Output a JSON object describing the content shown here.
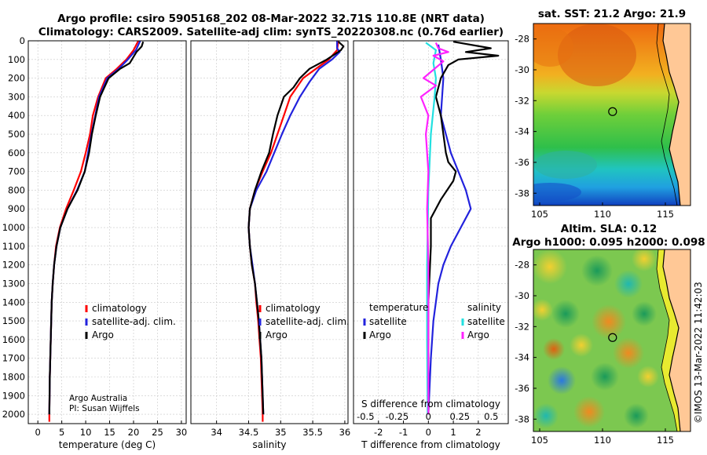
{
  "title_line1": "Argo profile: csiro 5905168_202 08-Mar-2022 32.71S 110.8E (NRT data)",
  "title_line2": "Climatology: CARS2009. Satellite-adj clim: synTS_20220308.nc (0.76d earlier)",
  "credit": "©IMOS 13-Mar-2022 11:42:03",
  "argo_note": [
    "Argo Australia",
    "PI: Susan Wijffels"
  ],
  "colors": {
    "climatology": "#ff0000",
    "satellite": "#2222dd",
    "argo": "#000000",
    "cyan": "#22e0e0",
    "magenta": "#ff22ff",
    "land": "#ffc896"
  },
  "chart_data": [
    {
      "type": "line",
      "id": "temperature",
      "xlabel": "temperature (deg C)",
      "xlim": [
        -2,
        31
      ],
      "ylim": [
        2050,
        0
      ],
      "xticks": [
        0,
        5,
        10,
        15,
        20,
        25,
        30
      ],
      "yticks": [
        0,
        100,
        200,
        300,
        400,
        500,
        600,
        700,
        800,
        900,
        1000,
        1100,
        1200,
        1300,
        1400,
        1500,
        1600,
        1700,
        1800,
        1900,
        2000
      ],
      "legend": [
        "climatology",
        "satellite-adj. clim.",
        "Argo"
      ],
      "series": [
        {
          "name": "climatology",
          "color": "#ff0000",
          "points": [
            [
              21,
              0
            ],
            [
              20,
              50
            ],
            [
              18.5,
              100
            ],
            [
              16.5,
              150
            ],
            [
              14.2,
              200
            ],
            [
              12.6,
              300
            ],
            [
              11.5,
              400
            ],
            [
              10.9,
              500
            ],
            [
              10,
              600
            ],
            [
              9,
              700
            ],
            [
              7.5,
              800
            ],
            [
              5.9,
              900
            ],
            [
              4.6,
              1000
            ],
            [
              3.8,
              1100
            ],
            [
              3.4,
              1200
            ],
            [
              3.1,
              1300
            ],
            [
              2.9,
              1400
            ],
            [
              2.8,
              1500
            ],
            [
              2.7,
              1600
            ],
            [
              2.6,
              1700
            ],
            [
              2.5,
              1800
            ],
            [
              2.45,
              1900
            ],
            [
              2.4,
              2000
            ],
            [
              2.4,
              2040
            ]
          ]
        },
        {
          "name": "satellite-adj. clim.",
          "color": "#2222dd",
          "points": [
            [
              21.4,
              0
            ],
            [
              20.5,
              50
            ],
            [
              18.8,
              100
            ],
            [
              16.9,
              150
            ],
            [
              14.5,
              200
            ],
            [
              12.8,
              300
            ],
            [
              12,
              400
            ],
            [
              11.2,
              500
            ],
            [
              10.5,
              600
            ],
            [
              9.8,
              700
            ],
            [
              8.2,
              800
            ],
            [
              6.2,
              900
            ],
            [
              4.7,
              1000
            ],
            [
              3.9,
              1100
            ],
            [
              3.4,
              1200
            ],
            [
              3.1,
              1300
            ],
            [
              2.9,
              1400
            ],
            [
              2.8,
              1500
            ],
            [
              2.7,
              1600
            ],
            [
              2.6,
              1700
            ],
            [
              2.5,
              1800
            ],
            [
              2.45,
              1900
            ],
            [
              2.4,
              2000
            ]
          ]
        },
        {
          "name": "Argo",
          "color": "#000000",
          "points": [
            [
              22,
              5
            ],
            [
              21.7,
              30
            ],
            [
              20.6,
              60
            ],
            [
              19.9,
              90
            ],
            [
              19.2,
              120
            ],
            [
              17.2,
              150
            ],
            [
              14.8,
              200
            ],
            [
              13,
              300
            ],
            [
              12.1,
              400
            ],
            [
              11.3,
              500
            ],
            [
              10.7,
              600
            ],
            [
              9.8,
              700
            ],
            [
              8.3,
              800
            ],
            [
              6.2,
              900
            ],
            [
              4.7,
              1000
            ],
            [
              3.9,
              1100
            ],
            [
              3.4,
              1200
            ],
            [
              3.1,
              1300
            ],
            [
              2.9,
              1400
            ],
            [
              2.8,
              1500
            ],
            [
              2.7,
              1600
            ],
            [
              2.6,
              1700
            ],
            [
              2.5,
              1800
            ],
            [
              2.45,
              1900
            ],
            [
              2.4,
              2000
            ]
          ]
        }
      ]
    },
    {
      "type": "line",
      "id": "salinity",
      "xlabel": "salinity",
      "xlim": [
        33.6,
        36.05
      ],
      "ylim": [
        2050,
        0
      ],
      "xticks": [
        34,
        34.5,
        35,
        35.5,
        36
      ],
      "xticklabels": [
        "34",
        "34.5",
        "35",
        "35.5",
        "36"
      ],
      "legend": [
        "climatology",
        "satellite-adj. clim.",
        "Argo"
      ],
      "series": [
        {
          "name": "climatology",
          "color": "#ff0000",
          "points": [
            [
              35.9,
              0
            ],
            [
              35.88,
              50
            ],
            [
              35.75,
              100
            ],
            [
              35.55,
              150
            ],
            [
              35.35,
              200
            ],
            [
              35.15,
              300
            ],
            [
              35.05,
              400
            ],
            [
              34.95,
              500
            ],
            [
              34.85,
              600
            ],
            [
              34.72,
              700
            ],
            [
              34.6,
              800
            ],
            [
              34.52,
              900
            ],
            [
              34.5,
              1000
            ],
            [
              34.52,
              1100
            ],
            [
              34.55,
              1200
            ],
            [
              34.6,
              1300
            ],
            [
              34.62,
              1400
            ],
            [
              34.65,
              1500
            ],
            [
              34.67,
              1600
            ],
            [
              34.69,
              1700
            ],
            [
              34.7,
              1800
            ],
            [
              34.71,
              1900
            ],
            [
              34.72,
              2000
            ],
            [
              34.72,
              2040
            ]
          ]
        },
        {
          "name": "satellite-adj. clim.",
          "color": "#2222dd",
          "points": [
            [
              35.88,
              0
            ],
            [
              35.88,
              40
            ],
            [
              35.92,
              60
            ],
            [
              35.8,
              100
            ],
            [
              35.6,
              150
            ],
            [
              35.45,
              220
            ],
            [
              35.3,
              300
            ],
            [
              35.15,
              400
            ],
            [
              35.02,
              500
            ],
            [
              34.9,
              600
            ],
            [
              34.78,
              700
            ],
            [
              34.62,
              800
            ],
            [
              34.52,
              900
            ],
            [
              34.5,
              1000
            ],
            [
              34.52,
              1100
            ],
            [
              34.56,
              1200
            ],
            [
              34.6,
              1300
            ],
            [
              34.63,
              1400
            ],
            [
              34.66,
              1500
            ],
            [
              34.68,
              1600
            ],
            [
              34.7,
              1700
            ],
            [
              34.71,
              1800
            ],
            [
              34.72,
              1900
            ],
            [
              34.73,
              2000
            ]
          ]
        },
        {
          "name": "Argo",
          "color": "#000000",
          "points": [
            [
              35.9,
              5
            ],
            [
              35.98,
              30
            ],
            [
              35.94,
              50
            ],
            [
              35.72,
              100
            ],
            [
              35.45,
              150
            ],
            [
              35.3,
              200
            ],
            [
              35.2,
              250
            ],
            [
              35.05,
              300
            ],
            [
              34.95,
              400
            ],
            [
              34.88,
              500
            ],
            [
              34.82,
              600
            ],
            [
              34.7,
              700
            ],
            [
              34.6,
              800
            ],
            [
              34.52,
              900
            ],
            [
              34.5,
              1000
            ],
            [
              34.52,
              1100
            ],
            [
              34.55,
              1200
            ],
            [
              34.6,
              1300
            ],
            [
              34.63,
              1400
            ],
            [
              34.66,
              1500
            ],
            [
              34.68,
              1600
            ],
            [
              34.7,
              1700
            ],
            [
              34.71,
              1800
            ],
            [
              34.72,
              1900
            ],
            [
              34.73,
              2000
            ]
          ]
        }
      ]
    },
    {
      "type": "line",
      "id": "difference",
      "xlabel": "T difference from climatology",
      "top_label": "S difference from climatology",
      "xlim": [
        -3,
        3.2
      ],
      "ylim": [
        2050,
        0
      ],
      "xticks": [
        -2,
        -1,
        0,
        1,
        2
      ],
      "top_xticks": [
        -0.5,
        -0.25,
        0,
        0.25,
        0.5
      ],
      "top_xticklabels": [
        "-0.5",
        "-0.25",
        "0",
        "0.25",
        "0.5"
      ],
      "legend_left_title": "temperature",
      "legend_right_title": "salinity",
      "legend_left": [
        "satellite",
        "Argo"
      ],
      "legend_right": [
        "satellite",
        "Argo"
      ],
      "series": [
        {
          "name": "temperature satellite",
          "color": "#2222dd",
          "points": [
            [
              0.4,
              20
            ],
            [
              0.5,
              100
            ],
            [
              0.6,
              200
            ],
            [
              0.5,
              400
            ],
            [
              0.7,
              500
            ],
            [
              0.9,
              600
            ],
            [
              1.2,
              700
            ],
            [
              1.5,
              800
            ],
            [
              1.7,
              900
            ],
            [
              1.3,
              1000
            ],
            [
              0.9,
              1100
            ],
            [
              0.6,
              1200
            ],
            [
              0.4,
              1300
            ],
            [
              0.2,
              1500
            ],
            [
              0.1,
              1700
            ],
            [
              0,
              2000
            ]
          ]
        },
        {
          "name": "temperature Argo",
          "color": "#000000",
          "points": [
            [
              1,
              5
            ],
            [
              2.5,
              40
            ],
            [
              1.5,
              60
            ],
            [
              2.8,
              80
            ],
            [
              1.2,
              100
            ],
            [
              0.8,
              130
            ],
            [
              0.5,
              200
            ],
            [
              0.3,
              300
            ],
            [
              0.5,
              400
            ],
            [
              0.6,
              500
            ],
            [
              0.7,
              600
            ],
            [
              0.8,
              650
            ],
            [
              1.1,
              700
            ],
            [
              1,
              750
            ],
            [
              0.5,
              850
            ],
            [
              0.1,
              950
            ],
            [
              0.1,
              1100
            ],
            [
              0,
              1400
            ],
            [
              0,
              2000
            ]
          ]
        },
        {
          "name": "salinity satellite",
          "color": "#22e0e0",
          "points": [
            [
              -0.1,
              10
            ],
            [
              0.3,
              50
            ],
            [
              0.2,
              120
            ],
            [
              0.3,
              200
            ],
            [
              0.25,
              300
            ],
            [
              0.1,
              500
            ],
            [
              0,
              800
            ],
            [
              -0.05,
              1200
            ],
            [
              -0.05,
              1600
            ],
            [
              -0.03,
              2000
            ]
          ]
        },
        {
          "name": "salinity Argo",
          "color": "#ff22ff",
          "points": [
            [
              0.3,
              10
            ],
            [
              0.4,
              40
            ],
            [
              0.8,
              60
            ],
            [
              0.2,
              80
            ],
            [
              0.6,
              110
            ],
            [
              -0.2,
              200
            ],
            [
              0.3,
              240
            ],
            [
              -0.3,
              300
            ],
            [
              0,
              400
            ],
            [
              -0.1,
              500
            ],
            [
              0,
              700
            ],
            [
              -0.05,
              900
            ],
            [
              0,
              1200
            ],
            [
              0,
              1600
            ],
            [
              0,
              2000
            ]
          ]
        }
      ]
    },
    {
      "type": "heatmap",
      "id": "sst_map",
      "title": "sat. SST: 21.2  Argo: 21.9",
      "xlim": [
        104.5,
        117
      ],
      "ylim": [
        -38.8,
        -27
      ],
      "xticks": [
        105,
        110,
        115
      ],
      "yticks": [
        -28,
        -30,
        -32,
        -34,
        -36,
        -38
      ],
      "marker": [
        110.8,
        -32.71
      ]
    },
    {
      "type": "heatmap",
      "id": "sla_map",
      "title_line1": "Altim. SLA: 0.12",
      "title_line2": "Argo h1000: 0.095 h2000: 0.098",
      "xlim": [
        104.5,
        117
      ],
      "ylim": [
        -38.8,
        -27
      ],
      "xticks": [
        105,
        110,
        115
      ],
      "yticks": [
        -28,
        -30,
        -32,
        -34,
        -36,
        -38
      ],
      "marker": [
        110.8,
        -32.71
      ]
    }
  ]
}
